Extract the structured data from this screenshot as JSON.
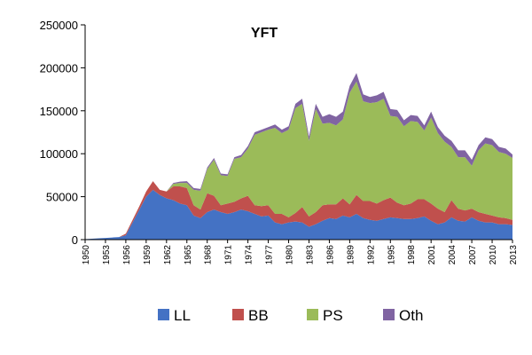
{
  "chart_data": {
    "type": "area",
    "stacked": true,
    "title": "YFT",
    "xlabel": "",
    "ylabel": "",
    "ylim": [
      0,
      250000
    ],
    "yticks": [
      0,
      50000,
      100000,
      150000,
      200000,
      250000
    ],
    "ytick_labels": [
      "0",
      "50000",
      "100000",
      "150000",
      "200000",
      "250000"
    ],
    "xticks": [
      "1950",
      "1953",
      "1956",
      "1959",
      "1962",
      "1965",
      "1968",
      "1971",
      "1974",
      "1977",
      "1980",
      "1983",
      "1986",
      "1989",
      "1992",
      "1995",
      "1998",
      "2001",
      "2004",
      "2007",
      "2010",
      "2013"
    ],
    "grid": false,
    "legend_position": "bottom",
    "x": [
      1950,
      1951,
      1952,
      1953,
      1954,
      1955,
      1956,
      1957,
      1958,
      1959,
      1960,
      1961,
      1962,
      1963,
      1964,
      1965,
      1966,
      1967,
      1968,
      1969,
      1970,
      1971,
      1972,
      1973,
      1974,
      1975,
      1976,
      1977,
      1978,
      1979,
      1980,
      1981,
      1982,
      1983,
      1984,
      1985,
      1986,
      1987,
      1988,
      1989,
      1990,
      1991,
      1992,
      1993,
      1994,
      1995,
      1996,
      1997,
      1998,
      1999,
      2000,
      2001,
      2002,
      2003,
      2004,
      2005,
      2006,
      2007,
      2008,
      2009,
      2010,
      2011,
      2012,
      2013
    ],
    "series": [
      {
        "name": "LL",
        "color": "#4472C4",
        "values": [
          500,
          1000,
          1500,
          2000,
          2500,
          3000,
          5000,
          20000,
          35000,
          50000,
          58000,
          52000,
          48000,
          46000,
          42000,
          40000,
          28000,
          25000,
          32000,
          35000,
          32000,
          30000,
          32000,
          35000,
          33000,
          30000,
          27000,
          28000,
          20000,
          18000,
          20000,
          21000,
          20000,
          15000,
          18000,
          22000,
          25000,
          24000,
          28000,
          26000,
          30000,
          25000,
          23000,
          22000,
          24000,
          26000,
          25000,
          24000,
          24000,
          25000,
          27000,
          22000,
          18000,
          20000,
          26000,
          22000,
          21000,
          26000,
          22000,
          20000,
          20000,
          18000,
          18000,
          17000
        ]
      },
      {
        "name": "BB",
        "color": "#C0504D",
        "values": [
          0,
          0,
          0,
          0,
          0,
          0,
          2000,
          3000,
          4000,
          6000,
          10000,
          6000,
          8000,
          16000,
          20000,
          20000,
          12000,
          10000,
          22000,
          16000,
          8000,
          12000,
          12000,
          13000,
          18000,
          10000,
          12000,
          12000,
          10000,
          12000,
          6000,
          10000,
          18000,
          12000,
          14000,
          18000,
          16000,
          17000,
          20000,
          15000,
          22000,
          20000,
          22000,
          20000,
          22000,
          23000,
          18000,
          16000,
          18000,
          22000,
          20000,
          20000,
          18000,
          12000,
          20000,
          14000,
          13000,
          10000,
          10000,
          10000,
          8000,
          8000,
          7000,
          6000
        ]
      },
      {
        "name": "PS",
        "color": "#9BBB59",
        "values": [
          0,
          0,
          0,
          0,
          0,
          0,
          0,
          0,
          0,
          0,
          0,
          0,
          0,
          3000,
          4000,
          6000,
          18000,
          22000,
          28000,
          42000,
          35000,
          32000,
          50000,
          48000,
          55000,
          82000,
          86000,
          88000,
          100000,
          94000,
          102000,
          122000,
          120000,
          88000,
          120000,
          95000,
          95000,
          92000,
          92000,
          130000,
          132000,
          116000,
          114000,
          118000,
          118000,
          95000,
          100000,
          92000,
          96000,
          90000,
          80000,
          100000,
          88000,
          82000,
          62000,
          60000,
          62000,
          50000,
          72000,
          82000,
          82000,
          76000,
          75000,
          72000
        ]
      },
      {
        "name": "Oth",
        "color": "#8064A2",
        "values": [
          0,
          0,
          0,
          0,
          0,
          0,
          0,
          0,
          0,
          0,
          0,
          0,
          0,
          1000,
          1500,
          2000,
          2000,
          2000,
          2000,
          2000,
          2000,
          2000,
          2000,
          2500,
          3000,
          3000,
          3000,
          3000,
          4000,
          4000,
          4000,
          5000,
          6000,
          5000,
          6000,
          8000,
          10000,
          10000,
          9000,
          8000,
          10000,
          8000,
          7000,
          8000,
          8000,
          8000,
          8000,
          7000,
          7000,
          7000,
          6000,
          7000,
          7000,
          7000,
          7000,
          8000,
          8000,
          7000,
          6000,
          7000,
          7000,
          6000,
          6000,
          4000
        ]
      }
    ]
  }
}
